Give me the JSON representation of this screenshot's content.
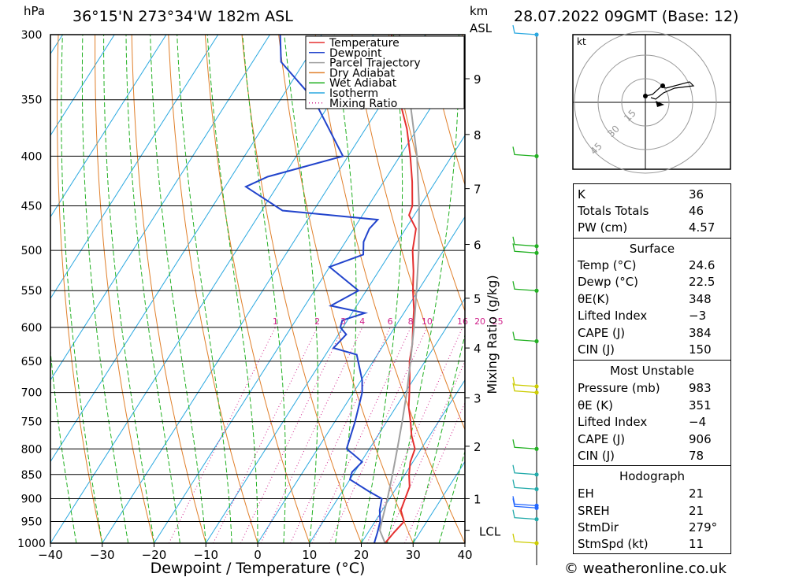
{
  "header": {
    "location": "36°15'N  273°34'W  182m  ASL",
    "datetime": "28.07.2022  09GMT  (Base: 12)",
    "hpa_unit": "hPa",
    "km_unit": "km",
    "asl_label": "ASL"
  },
  "chart_data": {
    "type": "skew-t",
    "xlabel": "Dewpoint / Temperature (°C)",
    "ylabel_right": "Mixing Ratio (g/kg)",
    "x_ticks": [
      -40,
      -30,
      -20,
      -10,
      0,
      10,
      20,
      30,
      40
    ],
    "x_tick_labels": [
      "−40",
      "−30",
      "−20",
      "−10",
      "0",
      "10",
      "20",
      "30",
      "40"
    ],
    "pressure_levels": [
      300,
      350,
      400,
      450,
      500,
      550,
      600,
      650,
      700,
      750,
      800,
      850,
      900,
      950,
      1000
    ],
    "xlim": [
      -40,
      40
    ],
    "ylim_hpa": [
      1000,
      300
    ],
    "km_labels": [
      {
        "km": "1",
        "p": 900
      },
      {
        "km": "2",
        "p": 795
      },
      {
        "km": "3",
        "p": 709
      },
      {
        "km": "4",
        "p": 630
      },
      {
        "km": "5",
        "p": 560
      },
      {
        "km": "6",
        "p": 493
      },
      {
        "km": "7",
        "p": 432
      },
      {
        "km": "8",
        "p": 380
      },
      {
        "km": "9",
        "p": 333
      }
    ],
    "lcl_label": {
      "text": "LCL",
      "p": 970
    },
    "mixing_ratio_labels": [
      "1",
      "2",
      "3",
      "4",
      "6",
      "8",
      "10",
      "16",
      "20",
      "25"
    ],
    "legend": [
      "Temperature",
      "Dewpoint",
      "Parcel Trajectory",
      "Dry Adiabat",
      "Wet Adiabat",
      "Isotherm",
      "Mixing Ratio"
    ],
    "series": [
      {
        "name": "Temperature",
        "color": "#e53030",
        "points": [
          [
            1000,
            24.6
          ],
          [
            975,
            25.0
          ],
          [
            950,
            25.6
          ],
          [
            925,
            23.6
          ],
          [
            900,
            23.0
          ],
          [
            875,
            22.4
          ],
          [
            850,
            20.8
          ],
          [
            825,
            19.5
          ],
          [
            800,
            18.8
          ],
          [
            775,
            16.5
          ],
          [
            750,
            14.6
          ],
          [
            725,
            12.5
          ],
          [
            700,
            10.8
          ],
          [
            675,
            9.0
          ],
          [
            650,
            7.0
          ],
          [
            625,
            5.5
          ],
          [
            600,
            3.5
          ],
          [
            575,
            1.5
          ],
          [
            550,
            -1.0
          ],
          [
            525,
            -3.3
          ],
          [
            500,
            -6.0
          ],
          [
            475,
            -8.0
          ],
          [
            460,
            -11.0
          ],
          [
            450,
            -11.5
          ],
          [
            425,
            -14.5
          ],
          [
            400,
            -18.0
          ],
          [
            375,
            -22.0
          ],
          [
            350,
            -27.0
          ],
          [
            330,
            -30.5
          ],
          [
            300,
            -36.5
          ]
        ]
      },
      {
        "name": "Dewpoint",
        "color": "#2244cc",
        "points": [
          [
            1000,
            22.5
          ],
          [
            975,
            21.8
          ],
          [
            950,
            21.0
          ],
          [
            925,
            19.5
          ],
          [
            900,
            18.5
          ],
          [
            885,
            15.2
          ],
          [
            860,
            10.0
          ],
          [
            845,
            9.5
          ],
          [
            825,
            10.2
          ],
          [
            810,
            7.5
          ],
          [
            800,
            5.6
          ],
          [
            750,
            3.9
          ],
          [
            700,
            1.7
          ],
          [
            680,
            0.2
          ],
          [
            640,
            -4.0
          ],
          [
            630,
            -9.3
          ],
          [
            610,
            -8.5
          ],
          [
            600,
            -10.5
          ],
          [
            590,
            -11.0
          ],
          [
            580,
            -7.5
          ],
          [
            570,
            -15.0
          ],
          [
            550,
            -11.5
          ],
          [
            520,
            -20.0
          ],
          [
            505,
            -15.0
          ],
          [
            490,
            -16.5
          ],
          [
            475,
            -17.0
          ],
          [
            465,
            -16.5
          ],
          [
            455,
            -36.0
          ],
          [
            430,
            -46.0
          ],
          [
            420,
            -43.0
          ],
          [
            400,
            -31.0
          ],
          [
            350,
            -43.5
          ],
          [
            320,
            -54.5
          ],
          [
            300,
            -58.0
          ]
        ]
      },
      {
        "name": "Parcel Trajectory",
        "color": "#a0a0a0",
        "points": [
          [
            1000,
            24.6
          ],
          [
            970,
            22.0
          ],
          [
            950,
            21.3
          ],
          [
            900,
            19.6
          ],
          [
            850,
            17.6
          ],
          [
            800,
            15.4
          ],
          [
            750,
            13.0
          ],
          [
            700,
            10.3
          ],
          [
            650,
            7.2
          ],
          [
            600,
            3.7
          ],
          [
            550,
            -0.3
          ],
          [
            500,
            -4.8
          ],
          [
            450,
            -10.2
          ],
          [
            400,
            -16.7
          ],
          [
            350,
            -25.0
          ],
          [
            330,
            -29.0
          ],
          [
            300,
            -35.0
          ]
        ]
      }
    ]
  },
  "hodograph": {
    "unit": "kt",
    "ring_labels": [
      "15",
      "30",
      "45"
    ]
  },
  "indices": [
    {
      "label": "K",
      "value": "36"
    },
    {
      "label": "Totals Totals",
      "value": "46"
    },
    {
      "label": "PW (cm)",
      "value": "4.57"
    }
  ],
  "surface": {
    "title": "Surface",
    "rows": [
      {
        "label": "Temp (°C)",
        "value": "24.6"
      },
      {
        "label": "Dewp (°C)",
        "value": "22.5"
      },
      {
        "label": "θE(K)",
        "value": "348"
      },
      {
        "label": "Lifted Index",
        "value": "−3"
      },
      {
        "label": "CAPE (J)",
        "value": "384"
      },
      {
        "label": "CIN (J)",
        "value": "150"
      }
    ]
  },
  "most_unstable": {
    "title": "Most Unstable",
    "rows": [
      {
        "label": "Pressure (mb)",
        "value": "983"
      },
      {
        "label": "θE (K)",
        "value": "351"
      },
      {
        "label": "Lifted Index",
        "value": "−4"
      },
      {
        "label": "CAPE (J)",
        "value": "906"
      },
      {
        "label": "CIN (J)",
        "value": "78"
      }
    ]
  },
  "hodograph_table": {
    "title": "Hodograph",
    "rows": [
      {
        "label": "EH",
        "value": "21"
      },
      {
        "label": "SREH",
        "value": "21"
      },
      {
        "label": "StmDir",
        "value": "279°"
      },
      {
        "label": "StmSpd (kt)",
        "value": "11"
      }
    ]
  },
  "footer": {
    "copyright": "© weatheronline.co.uk"
  }
}
